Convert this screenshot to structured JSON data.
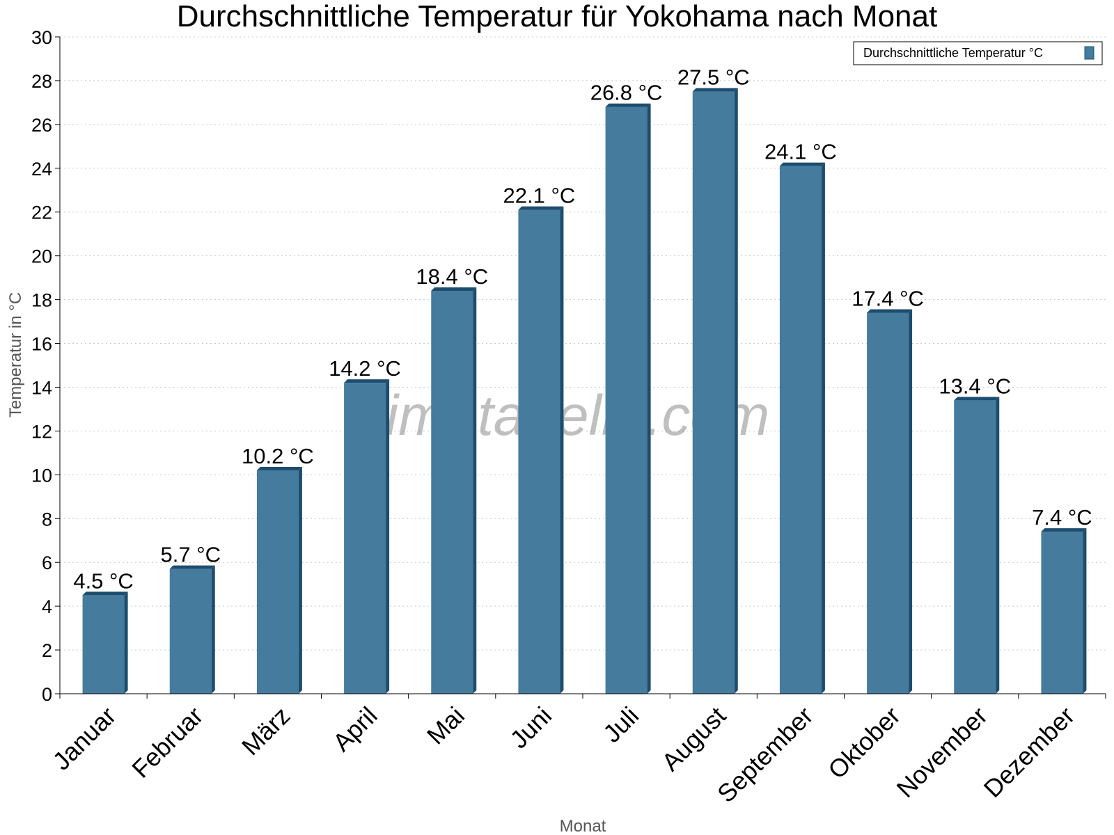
{
  "chart_data": {
    "type": "bar",
    "title": "Durchschnittliche Temperatur für Yokohama nach Monat",
    "xlabel": "Monat",
    "ylabel": "Temperatur in °C",
    "ylim": [
      0,
      30
    ],
    "y_ticks": [
      0,
      2,
      4,
      6,
      8,
      10,
      12,
      14,
      16,
      18,
      20,
      22,
      24,
      26,
      28,
      30
    ],
    "grid": true,
    "legend_position": "top-right",
    "categories": [
      "Januar",
      "Februar",
      "März",
      "April",
      "Mai",
      "Juni",
      "Juli",
      "August",
      "September",
      "Oktober",
      "November",
      "Dezember"
    ],
    "series": [
      {
        "name": "Durchschnittliche Temperatur °C",
        "color": "#457b9d",
        "edge_color": "#1d4d6e",
        "values": [
          4.5,
          5.7,
          10.2,
          14.2,
          18.4,
          22.1,
          26.8,
          27.5,
          24.1,
          17.4,
          13.4,
          7.4
        ],
        "labels": [
          "4.5 °C",
          "5.7 °C",
          "10.2 °C",
          "14.2 °C",
          "18.4 °C",
          "22.1 °C",
          "26.8 °C",
          "27.5 °C",
          "24.1 °C",
          "17.4 °C",
          "13.4 °C",
          "7.4 °C"
        ]
      }
    ]
  },
  "watermark": "klimatabelle.com"
}
